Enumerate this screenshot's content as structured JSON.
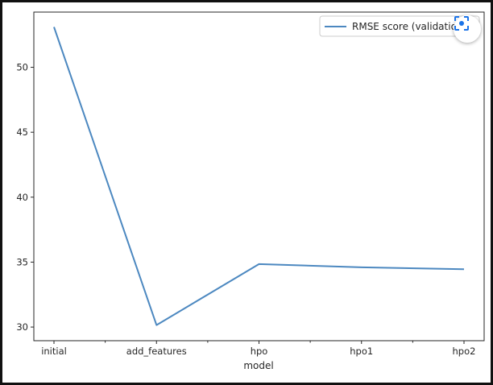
{
  "colors": {
    "line": "#4c88c0",
    "axis": "#262626",
    "background": "#ffffff"
  },
  "overlay": {
    "icon": "lens-scan-icon"
  },
  "chart_data": {
    "type": "line",
    "categories": [
      "initial",
      "add_features",
      "hpo",
      "hpo1",
      "hpo2"
    ],
    "series": [
      {
        "name": "RMSE score (validatio",
        "values": [
          53.1,
          30.15,
          34.85,
          34.6,
          34.45
        ]
      }
    ],
    "xlabel": "model",
    "ylabel": "",
    "ylim": [
      28.95,
      54.25
    ],
    "yticks": [
      30,
      35,
      40,
      45,
      50
    ],
    "grid": false,
    "legend": "top-right"
  }
}
